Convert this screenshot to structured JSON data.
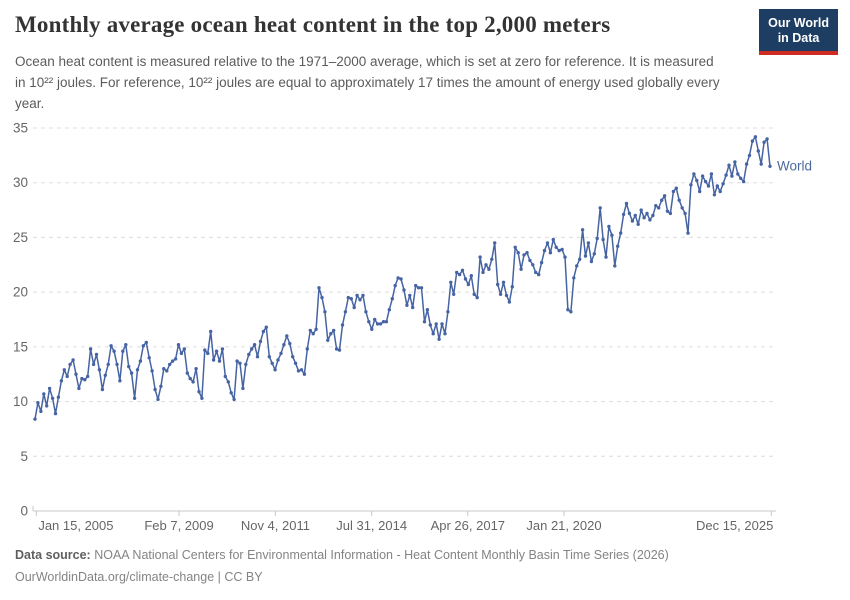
{
  "header": {
    "title": "Monthly average ocean heat content in the top 2,000 meters",
    "subtitle": "Ocean heat content is measured relative to the 1971–2000 average, which is set at zero for reference. It is measured in 10²² joules. For reference, 10²² joules are equal to approximately 17 times the amount of energy used globally every year.",
    "logo": {
      "line1": "Our World",
      "line2": "in Data",
      "bg_color": "#1d3d63",
      "accent_color": "#cf2d24"
    }
  },
  "chart_data": {
    "type": "line",
    "title": "Monthly average ocean heat content in the top 2,000 meters",
    "unit": "10²² joules, relative to 1971–2000 average",
    "x_start": "2005-01",
    "x_interval": "1 month",
    "x_ticks": [
      "Jan 15, 2005",
      "Feb 7, 2009",
      "Nov 4, 2011",
      "Jul 31, 2014",
      "Apr 26, 2017",
      "Jan 21, 2020",
      "Dec 15, 2025"
    ],
    "y_ticks": [
      0,
      5,
      10,
      15,
      20,
      25,
      30,
      35
    ],
    "ylim": [
      0,
      35
    ],
    "grid": "horizontal dashed",
    "legend_position": "end-of-line label",
    "line_color": "#4664a3",
    "end_label_color": "#4c6a9c",
    "series": [
      {
        "name": "World",
        "values": [
          8.4,
          9.9,
          9.1,
          10.7,
          9.6,
          11.2,
          10.3,
          8.9,
          10.4,
          11.9,
          12.9,
          12.3,
          13.4,
          13.8,
          12.5,
          11.2,
          12.1,
          12.0,
          12.3,
          14.8,
          13.4,
          14.3,
          12.9,
          11.1,
          12.4,
          13.4,
          15.1,
          14.6,
          13.4,
          11.9,
          14.6,
          15.2,
          13.2,
          12.6,
          10.3,
          12.9,
          13.7,
          15.1,
          15.4,
          14.0,
          12.8,
          11.1,
          10.2,
          11.4,
          13.0,
          12.8,
          13.4,
          13.7,
          13.9,
          15.2,
          14.4,
          14.8,
          12.6,
          12.1,
          11.8,
          13.0,
          10.9,
          10.3,
          14.7,
          14.4,
          16.4,
          13.8,
          14.6,
          13.7,
          14.8,
          12.3,
          11.8,
          10.8,
          10.2,
          13.7,
          13.5,
          11.2,
          13.4,
          14.3,
          14.8,
          15.2,
          14.1,
          15.5,
          16.4,
          16.8,
          14.1,
          13.5,
          12.9,
          13.8,
          14.4,
          15.2,
          16.0,
          15.3,
          14.1,
          13.5,
          12.8,
          12.9,
          12.5,
          14.8,
          16.5,
          16.2,
          16.6,
          20.4,
          19.5,
          18.2,
          15.6,
          16.2,
          16.5,
          14.8,
          14.7,
          17.0,
          18.2,
          19.5,
          19.4,
          18.6,
          19.7,
          19.3,
          19.7,
          18.2,
          17.3,
          16.6,
          17.5,
          17.1,
          17.1,
          17.3,
          17.3,
          18.4,
          19.4,
          20.6,
          21.3,
          21.2,
          20.2,
          18.8,
          19.7,
          18.6,
          20.6,
          20.4,
          20.4,
          17.3,
          18.4,
          17.0,
          16.2,
          17.1,
          15.7,
          17.1,
          16.2,
          18.2,
          20.9,
          19.8,
          21.8,
          21.6,
          22.0,
          21.2,
          20.7,
          21.5,
          19.8,
          19.5,
          23.2,
          21.8,
          22.5,
          22.1,
          23.0,
          24.5,
          20.7,
          19.8,
          20.9,
          19.7,
          19.1,
          20.5,
          24.1,
          23.6,
          22.1,
          23.4,
          23.6,
          22.9,
          22.5,
          21.8,
          21.6,
          22.7,
          23.8,
          24.5,
          23.6,
          24.8,
          24.1,
          23.8,
          23.9,
          23.2,
          18.4,
          18.2,
          21.3,
          22.4,
          23.0,
          25.7,
          23.3,
          24.5,
          22.8,
          23.5,
          24.9,
          27.7,
          24.8,
          23.2,
          26.0,
          25.2,
          22.4,
          24.2,
          25.4,
          27.1,
          28.1,
          27.2,
          26.5,
          27.0,
          26.2,
          27.5,
          26.8,
          27.2,
          26.6,
          27.0,
          27.9,
          27.7,
          28.4,
          28.8,
          27.4,
          27.2,
          29.2,
          29.5,
          28.4,
          27.7,
          27.2,
          25.4,
          29.8,
          30.8,
          30.2,
          29.2,
          30.6,
          30.1,
          29.7,
          30.8,
          28.9,
          29.7,
          29.2,
          29.9,
          30.7,
          31.6,
          30.6,
          31.9,
          30.8,
          30.4,
          30.1,
          31.7,
          32.5,
          33.8,
          34.2,
          32.9,
          31.7,
          33.7,
          34.0,
          31.5
        ]
      }
    ]
  },
  "footer": {
    "source_label": "Data source:",
    "source_text": "NOAA National Centers for Environmental Information - Heat Content Monthly Basin Time Series (2026)",
    "link_line": "OurWorldinData.org/climate-change | CC BY"
  }
}
